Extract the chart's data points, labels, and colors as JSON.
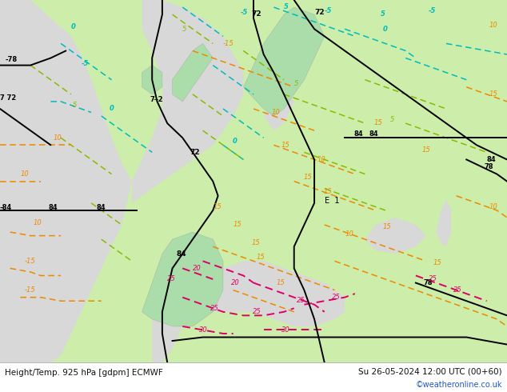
{
  "title_left": "Height/Temp. 925 hPa [gdpm] ECMWF",
  "title_right": "Su 26-05-2024 12:00 UTC (00+60)",
  "copyright": "©weatheronline.co.uk",
  "fig_width": 6.34,
  "fig_height": 4.9,
  "dpi": 100,
  "bg_color": "#ffffff",
  "land_green": "#cceeaa",
  "land_green2": "#aaddaa",
  "ocean_gray": "#d8d8d8",
  "coast_gray": "#aaaaaa",
  "black": "#000000",
  "cyan": "#00bbbb",
  "orange": "#ee8800",
  "magenta": "#dd0066",
  "lime": "#88bb00",
  "copyright_color": "#2255cc",
  "bottom_text_color": "#111111"
}
